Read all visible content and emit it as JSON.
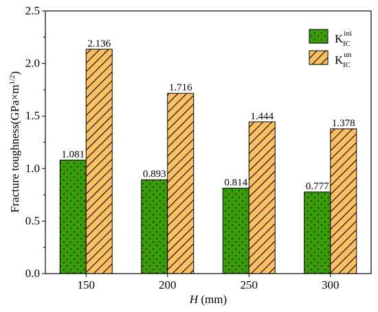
{
  "chart_data": {
    "type": "bar",
    "categories": [
      "150",
      "200",
      "250",
      "300"
    ],
    "series": [
      {
        "name_base": "K",
        "name_sub": "IC",
        "name_sup": "ini",
        "values": [
          1.081,
          0.893,
          0.814,
          0.777
        ],
        "labels": [
          "1.081",
          "0.893",
          "0.814",
          "0.777"
        ],
        "color": "#3a9a0a",
        "pattern": "dots"
      },
      {
        "name_base": "K",
        "name_sub": "IC",
        "name_sup": "un",
        "values": [
          2.136,
          1.716,
          1.444,
          1.378
        ],
        "labels": [
          "2.136",
          "1.716",
          "1.444",
          "1.378"
        ],
        "color": "#fcbf63",
        "pattern": "hatch"
      }
    ],
    "ylabel_main": "Fracture toughness(GPa×m",
    "ylabel_sup": "1/2",
    "ylabel_close": ")",
    "xlabel_var": "H",
    "xlabel_unit": " (mm)",
    "ylim": [
      0,
      2.5
    ],
    "yticks": [
      "0.0",
      "0.5",
      "1.0",
      "1.5",
      "2.0",
      "2.5"
    ],
    "grid": false,
    "legend_position": "top-right"
  }
}
